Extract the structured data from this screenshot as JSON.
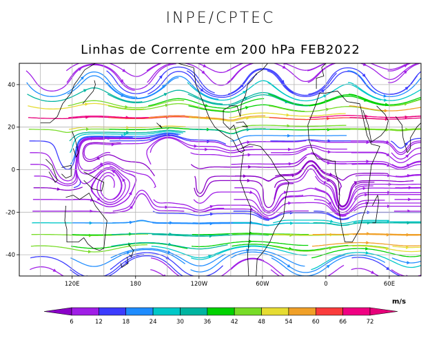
{
  "header": {
    "org": "INPE/CPTEC",
    "title": "Linhas de Corrente em 200 hPa FEB2022"
  },
  "map": {
    "projection": "cylindrical",
    "lon_range": [
      -290,
      90
    ],
    "lat_range": [
      -50,
      50
    ],
    "xticks": [
      {
        "lon": -240,
        "label": "120E"
      },
      {
        "lon": -180,
        "label": "180"
      },
      {
        "lon": -120,
        "label": "120W"
      },
      {
        "lon": -60,
        "label": "60W"
      },
      {
        "lon": 0,
        "label": "0"
      },
      {
        "lon": 60,
        "label": "60E"
      }
    ],
    "yticks": [
      {
        "lat": 40,
        "label": "40"
      },
      {
        "lat": 20,
        "label": "20"
      },
      {
        "lat": 0,
        "label": "0"
      },
      {
        "lat": -20,
        "label": "-20"
      },
      {
        "lat": -40,
        "label": "-40"
      }
    ],
    "gridlines": true,
    "field": "streamlines at 200 hPa, colored by wind speed"
  },
  "colorbar": {
    "unit": "m/s",
    "labels": [
      "6",
      "12",
      "18",
      "24",
      "30",
      "36",
      "42",
      "48",
      "54",
      "60",
      "66",
      "72"
    ],
    "colors": [
      "#8a00c8",
      "#a01ee6",
      "#3c3cff",
      "#1e8cff",
      "#00c8c8",
      "#00b4a0",
      "#00d200",
      "#78dc28",
      "#e6dc32",
      "#f0a028",
      "#fa3c3c",
      "#f00082",
      "#e6007a"
    ],
    "orientation": "horizontal",
    "position": "bottom"
  },
  "colors": {
    "coast": "#000000",
    "grid": "#b4b4b4",
    "frame": "#000000"
  }
}
